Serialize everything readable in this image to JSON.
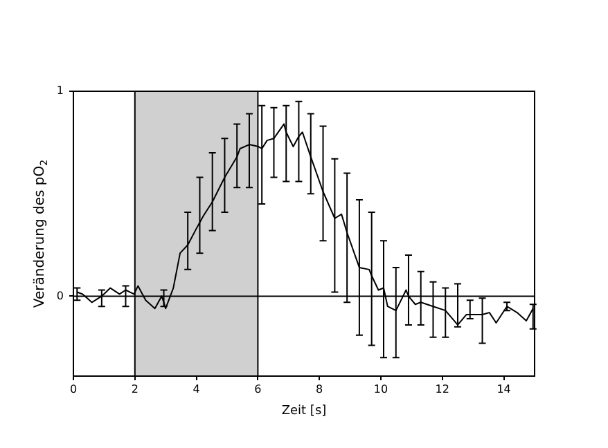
{
  "chart_data": {
    "type": "line",
    "xlabel": "Zeit [s]",
    "ylabel": "Veränderung des pO$_{2}$",
    "xlim": [
      0,
      15
    ],
    "xticks": [
      0,
      2,
      4,
      6,
      8,
      10,
      12,
      14
    ],
    "ylim": [
      -0.39,
      1
    ],
    "yticks": [
      0,
      1
    ],
    "grid": false,
    "legend": false,
    "marker": "none",
    "line_style": "solid",
    "bands": [
      {
        "axis": "x",
        "from": 2,
        "to": 6,
        "color": "#d0d0d0"
      }
    ],
    "ref_lines": [
      {
        "axis": "y",
        "value": 0,
        "color": "#000000"
      },
      {
        "axis": "x",
        "value": 2,
        "color": "#000000"
      },
      {
        "axis": "x",
        "value": 6,
        "color": "#000000"
      }
    ],
    "series": [
      {
        "color": "#000000",
        "x": [
          0.12,
          0.3,
          0.6,
          0.92,
          1.2,
          1.5,
          1.7,
          1.97,
          2.1,
          2.35,
          2.65,
          2.87,
          2.94,
          3.0,
          3.25,
          3.47,
          3.72,
          4.0,
          4.11,
          4.22,
          4.52,
          4.92,
          5.2,
          5.32,
          5.42,
          5.72,
          6.02,
          6.13,
          6.3,
          6.52,
          6.85,
          6.92,
          7.15,
          7.33,
          7.45,
          7.72,
          8.12,
          8.5,
          8.72,
          8.9,
          9.3,
          9.62,
          9.7,
          9.92,
          10.09,
          10.22,
          10.49,
          10.82,
          10.9,
          11.12,
          11.3,
          11.7,
          12.1,
          12.5,
          12.78,
          12.9,
          13.3,
          13.53,
          13.75,
          14.1,
          14.43,
          14.73,
          14.95
        ],
        "values": [
          0.02,
          0.01,
          -0.03,
          0.0,
          0.04,
          0.01,
          0.03,
          0.01,
          0.05,
          -0.02,
          -0.06,
          0.0,
          -0.03,
          -0.06,
          0.04,
          0.21,
          0.25,
          0.33,
          0.36,
          0.39,
          0.46,
          0.58,
          0.65,
          0.68,
          0.72,
          0.74,
          0.73,
          0.72,
          0.76,
          0.77,
          0.84,
          0.8,
          0.73,
          0.78,
          0.8,
          0.68,
          0.51,
          0.38,
          0.4,
          0.31,
          0.14,
          0.13,
          0.1,
          0.03,
          0.04,
          -0.05,
          -0.07,
          0.03,
          0.0,
          -0.04,
          -0.03,
          -0.05,
          -0.07,
          -0.14,
          -0.09,
          -0.09,
          -0.09,
          -0.08,
          -0.13,
          -0.05,
          -0.08,
          -0.12,
          -0.06
        ],
        "errors": [
          [
            -0.02,
            0.04
          ],
          null,
          null,
          [
            -0.05,
            0.03
          ],
          null,
          null,
          [
            -0.05,
            0.05
          ],
          null,
          null,
          null,
          null,
          null,
          [
            -0.05,
            0.03
          ],
          null,
          null,
          null,
          [
            0.13,
            0.41
          ],
          null,
          [
            0.21,
            0.58
          ],
          null,
          [
            0.32,
            0.7
          ],
          [
            0.41,
            0.77
          ],
          null,
          [
            0.53,
            0.84
          ],
          null,
          [
            0.53,
            0.89
          ],
          null,
          [
            0.45,
            0.93
          ],
          null,
          [
            0.58,
            0.92
          ],
          null,
          [
            0.56,
            0.93
          ],
          null,
          [
            0.56,
            0.95
          ],
          null,
          [
            0.5,
            0.89
          ],
          [
            0.27,
            0.83
          ],
          [
            0.02,
            0.67
          ],
          null,
          [
            -0.03,
            0.6
          ],
          [
            -0.19,
            0.47
          ],
          null,
          [
            -0.24,
            0.41
          ],
          null,
          [
            -0.3,
            0.27
          ],
          null,
          [
            -0.3,
            0.14
          ],
          null,
          [
            -0.14,
            0.2
          ],
          null,
          [
            -0.14,
            0.12
          ],
          [
            -0.2,
            0.07
          ],
          [
            -0.2,
            0.04
          ],
          [
            -0.15,
            0.06
          ],
          null,
          [
            -0.11,
            -0.02
          ],
          [
            -0.23,
            -0.01
          ],
          null,
          null,
          [
            -0.07,
            -0.03
          ],
          null,
          null,
          [
            -0.16,
            -0.04
          ]
        ]
      }
    ]
  }
}
